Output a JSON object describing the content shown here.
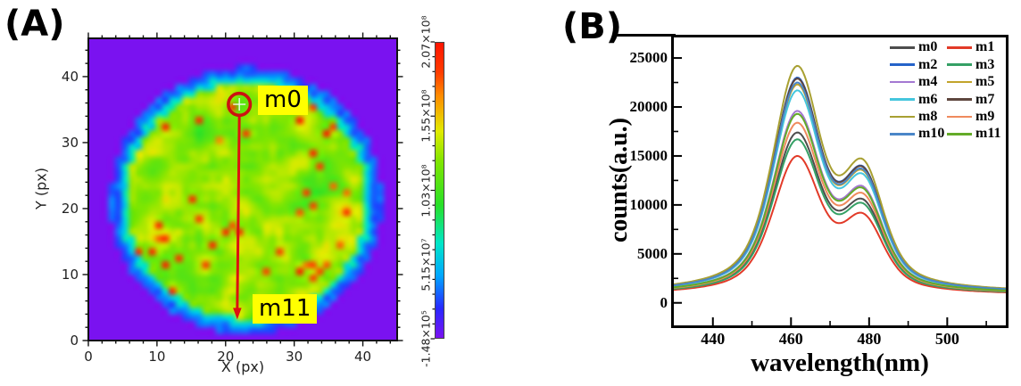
{
  "figure": {
    "panel_a_label": "(A)",
    "panel_b_label": "(B)"
  },
  "colors": {
    "background": "#ffffff",
    "frame": "#000000",
    "heatmap_background_purple": "#7a12f0",
    "annotation_highlight": "#ffff00",
    "marker_red": "#cc1111"
  },
  "chart_data": [
    {
      "id": "A",
      "type": "heatmap",
      "xlabel": "X (px)",
      "ylabel": "Y (px)",
      "xlim": [
        0,
        45
      ],
      "ylim": [
        0,
        45.8
      ],
      "xticks": [
        0,
        10,
        20,
        30,
        40
      ],
      "yticks": [
        0,
        10,
        20,
        30,
        40
      ],
      "minor_tick_step": 2,
      "description": "Blurred circular intensity map: green-yellow disc with sparse red hot spots on purple background, blue-cyan rim at disc edge",
      "disc": {
        "center_x": 22.5,
        "center_y": 21.7,
        "radius": 19.8
      },
      "colorbar": {
        "colormap": "rainbow (purple-blue-cyan-green-yellow-orange-red)",
        "labels_bottom_to_top": [
          "-1.48×10⁵",
          "5.15×10⁷",
          "1.03×10⁸",
          "1.55×10⁸",
          "2.07×10⁸"
        ]
      },
      "annotations": [
        {
          "label": "m0",
          "x": 22,
          "y": 35.8,
          "marker": "open-red-circle-with-crosshair"
        },
        {
          "label": "m11",
          "x": 21.7,
          "y": 3.2,
          "marker": "red-arrowhead"
        }
      ],
      "profile_arrow": {
        "from": "m0",
        "to": "m11",
        "color": "#dd1111",
        "direction": "downward"
      }
    },
    {
      "id": "B",
      "type": "line",
      "xlabel": "wavelength(nm)",
      "ylabel": "counts(a.u.)",
      "xlim": [
        430,
        515
      ],
      "ylim": [
        -2300,
        27100
      ],
      "xticks": [
        440,
        460,
        480,
        500
      ],
      "xminorticks": [
        450,
        470,
        490,
        510
      ],
      "yticks": [
        0,
        5000,
        10000,
        15000,
        20000,
        25000
      ],
      "yminor_step": 2500,
      "lineshape": {
        "main_peak_nm": 461.5,
        "shoulder_nm": 478.5,
        "baseline_counts": 1500
      },
      "legend_position": "top-right, 2 columns",
      "series": [
        {
          "name": "m0",
          "color": "#4d4d4d",
          "peak": 17400
        },
        {
          "name": "m1",
          "color": "#e23a28",
          "peak": 15000
        },
        {
          "name": "m2",
          "color": "#2563c9",
          "peak": 23000
        },
        {
          "name": "m3",
          "color": "#35a065",
          "peak": 16700
        },
        {
          "name": "m4",
          "color": "#a478d2",
          "peak": 19600
        },
        {
          "name": "m5",
          "color": "#c2a42a",
          "peak": 22300
        },
        {
          "name": "m6",
          "color": "#45c6dd",
          "peak": 21700
        },
        {
          "name": "m7",
          "color": "#5e463e",
          "peak": 22900
        },
        {
          "name": "m8",
          "color": "#a8a032",
          "peak": 24200
        },
        {
          "name": "m9",
          "color": "#ef8a5d",
          "peak": 18400
        },
        {
          "name": "m10",
          "color": "#4a86c8",
          "peak": 22500
        },
        {
          "name": "m11",
          "color": "#63ab28",
          "peak": 19300
        }
      ]
    }
  ]
}
